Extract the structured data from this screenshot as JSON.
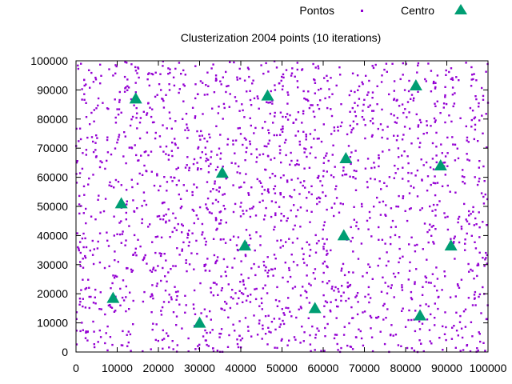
{
  "chart_data": {
    "type": "scatter",
    "title": "Clusterization 2004 points (10 iterations)",
    "xlim": [
      0,
      100000
    ],
    "ylim": [
      0,
      100000
    ],
    "xticks": [
      "0",
      "10000",
      "20000",
      "30000",
      "40000",
      "50000",
      "60000",
      "70000",
      "80000",
      "90000",
      "100000"
    ],
    "yticks": [
      "0",
      "10000",
      "20000",
      "30000",
      "40000",
      "50000",
      "60000",
      "70000",
      "80000",
      "90000",
      "100000"
    ],
    "grid": false,
    "legend_position": "top-right",
    "colors": {
      "points": "#9400d3",
      "centers": "#009e73"
    },
    "series": [
      {
        "name": "Pontos",
        "marker": "dot",
        "point_count": 2004,
        "generator": "uniform-random"
      },
      {
        "name": "Centro",
        "marker": "triangle",
        "points": [
          {
            "x": 14500,
            "y": 87000
          },
          {
            "x": 46500,
            "y": 88000
          },
          {
            "x": 82500,
            "y": 91500
          },
          {
            "x": 65500,
            "y": 66500
          },
          {
            "x": 88500,
            "y": 64000
          },
          {
            "x": 35500,
            "y": 61500
          },
          {
            "x": 11000,
            "y": 51000
          },
          {
            "x": 65000,
            "y": 40000
          },
          {
            "x": 41000,
            "y": 36500
          },
          {
            "x": 91000,
            "y": 36500
          },
          {
            "x": 9000,
            "y": 18500
          },
          {
            "x": 58000,
            "y": 15000
          },
          {
            "x": 83500,
            "y": 12500
          },
          {
            "x": 30000,
            "y": 10000
          }
        ]
      }
    ]
  }
}
